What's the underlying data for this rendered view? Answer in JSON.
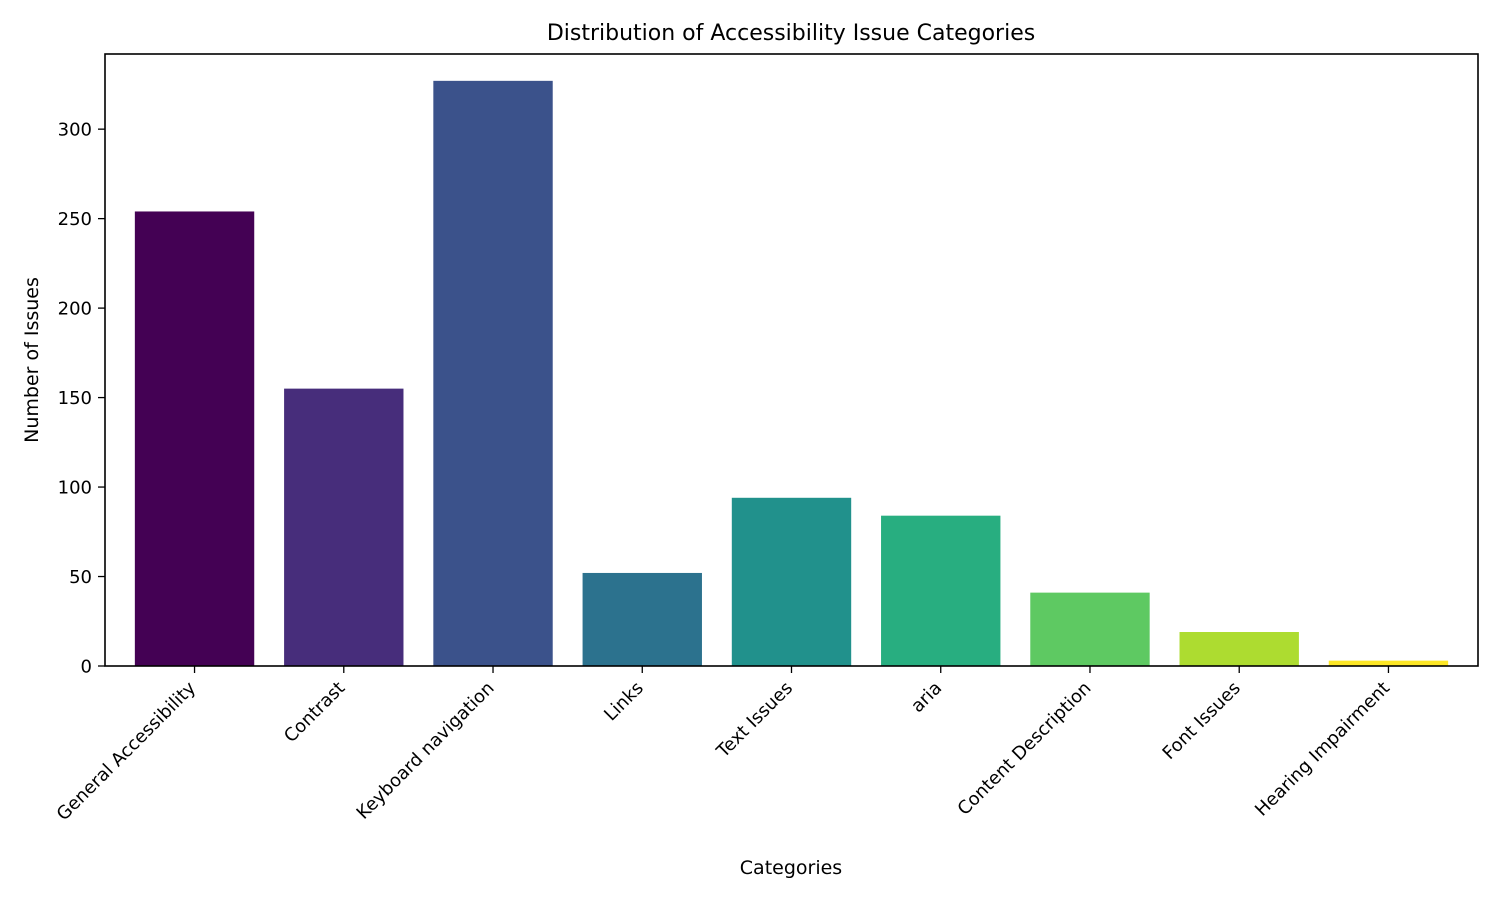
{
  "chart_data": {
    "type": "bar",
    "title": "Distribution of Accessibility Issue Categories",
    "xlabel": "Categories",
    "ylabel": "Number of Issues",
    "categories": [
      "General Accessibility",
      "Contrast",
      "Keyboard navigation",
      "Links",
      "Text Issues",
      "aria",
      "Content Description",
      "Font Issues",
      "Hearing Impairment"
    ],
    "values": [
      254,
      155,
      327,
      52,
      94,
      84,
      41,
      19,
      3
    ],
    "colors": [
      "#440154",
      "#472d7b",
      "#3b528b",
      "#2c728e",
      "#21918c",
      "#28ae80",
      "#5ec962",
      "#addc30",
      "#fde725"
    ],
    "ylim": [
      0,
      342
    ],
    "yticks": [
      0,
      50,
      100,
      150,
      200,
      250,
      300
    ],
    "grid": false,
    "legend": "none"
  }
}
